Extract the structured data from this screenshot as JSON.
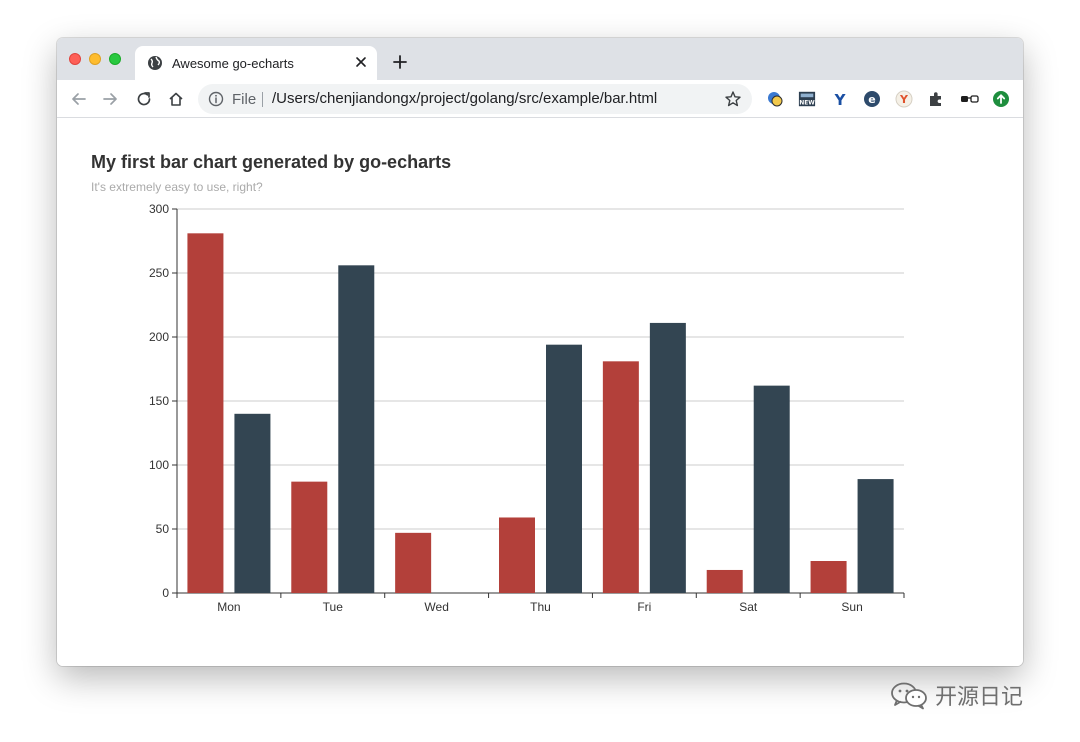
{
  "browser": {
    "tab_title": "Awesome go-echarts",
    "omnibox": {
      "scheme_label": "File",
      "url": "/Users/chenjiandongx/project/golang/src/example/bar.html"
    },
    "extensions": [
      {
        "name": "translate-extension-icon"
      },
      {
        "name": "news-extension-icon",
        "label": "NEW"
      },
      {
        "name": "y-extension-icon",
        "label": "Y"
      },
      {
        "name": "e-extension-icon",
        "label": "e"
      },
      {
        "name": "yandex-extension-icon",
        "label": "Y"
      },
      {
        "name": "puzzle-extensions-icon"
      },
      {
        "name": "glasses-extension-icon"
      },
      {
        "name": "update-extension-icon"
      }
    ]
  },
  "chart": {
    "title": "My first bar chart generated by go-echarts",
    "subtitle": "It's extremely easy to use, right?"
  },
  "chart_data": {
    "type": "bar",
    "title": "My first bar chart generated by go-echarts",
    "subtitle": "It's extremely easy to use, right?",
    "categories": [
      "Mon",
      "Tue",
      "Wed",
      "Thu",
      "Fri",
      "Sat",
      "Sun"
    ],
    "series": [
      {
        "color": "#b3403a",
        "values": [
          281,
          87,
          47,
          59,
          181,
          18,
          25
        ]
      },
      {
        "color": "#334552",
        "values": [
          140,
          256,
          0,
          194,
          211,
          162,
          89
        ]
      }
    ],
    "ylim": [
      0,
      300
    ],
    "yticks": [
      0,
      50,
      100,
      150,
      200,
      250,
      300
    ],
    "grid": true,
    "xlabel": "",
    "ylabel": ""
  },
  "footer": {
    "brand": "开源日记"
  },
  "colors": {
    "bar_red": "#b3403a",
    "bar_dark": "#334552",
    "tabstrip": "#dee1e6",
    "title": "#333333",
    "subtitle": "#aaaaaa"
  }
}
